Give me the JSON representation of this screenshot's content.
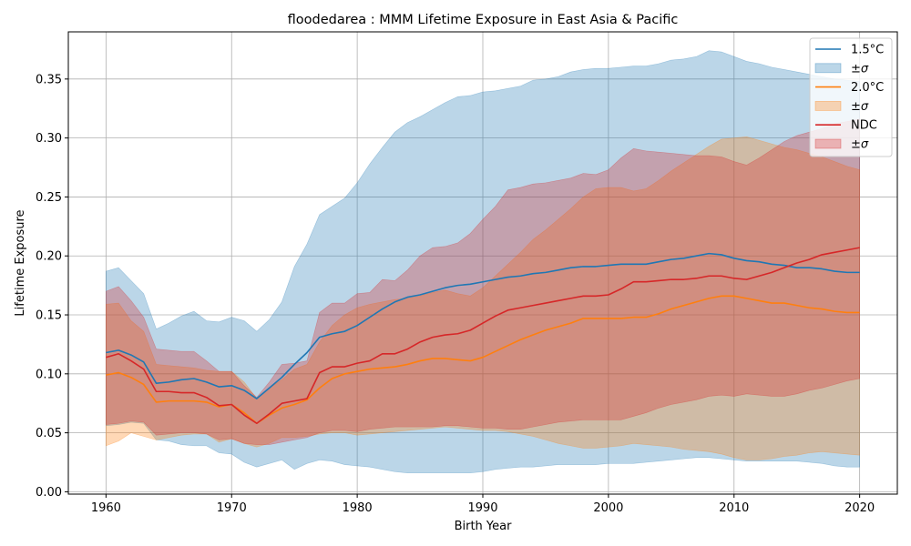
{
  "chart_data": {
    "type": "area",
    "title": "floodedarea : MMM Lifetime Exposure in East Asia & Pacific",
    "xlabel": "Birth Year",
    "ylabel": "Lifetime Exposure",
    "xlim": [
      1957,
      2023
    ],
    "ylim": [
      -0.002,
      0.39
    ],
    "x_ticks": [
      "1960",
      "1970",
      "1980",
      "1990",
      "2000",
      "2010",
      "2020"
    ],
    "y_ticks": [
      "0.00",
      "0.05",
      "0.10",
      "0.15",
      "0.20",
      "0.25",
      "0.30",
      "0.35"
    ],
    "grid": true,
    "legend_position": "top-right",
    "colors": {
      "1.5C": "#1f77b4",
      "2.0C": "#ff7f0e",
      "NDC": "#d62728",
      "band_1.5C": "#1f77b4",
      "band_2.0C": "#ff7f0e",
      "band_NDC": "#d62728"
    },
    "x": [
      1960,
      1961,
      1962,
      1963,
      1964,
      1965,
      1966,
      1967,
      1968,
      1969,
      1970,
      1971,
      1972,
      1973,
      1974,
      1975,
      1976,
      1977,
      1978,
      1979,
      1980,
      1981,
      1982,
      1983,
      1984,
      1985,
      1986,
      1987,
      1988,
      1989,
      1990,
      1991,
      1992,
      1993,
      1994,
      1995,
      1996,
      1997,
      1998,
      1999,
      2000,
      2001,
      2002,
      2003,
      2004,
      2005,
      2006,
      2007,
      2008,
      2009,
      2010,
      2011,
      2012,
      2013,
      2014,
      2015,
      2016,
      2017,
      2018,
      2019,
      2020
    ],
    "series": [
      {
        "name": "1.5°C",
        "band_label": "±σ",
        "values": [
          0.118,
          0.12,
          0.116,
          0.11,
          0.092,
          0.093,
          0.095,
          0.096,
          0.093,
          0.089,
          0.09,
          0.086,
          0.079,
          0.088,
          0.097,
          0.108,
          0.118,
          0.131,
          0.134,
          0.136,
          0.141,
          0.148,
          0.155,
          0.161,
          0.165,
          0.167,
          0.17,
          0.173,
          0.175,
          0.176,
          0.178,
          0.18,
          0.182,
          0.183,
          0.185,
          0.186,
          0.188,
          0.19,
          0.191,
          0.191,
          0.192,
          0.193,
          0.193,
          0.193,
          0.195,
          0.197,
          0.198,
          0.2,
          0.202,
          0.201,
          0.198,
          0.196,
          0.195,
          0.193,
          0.192,
          0.19,
          0.19,
          0.189,
          0.187,
          0.186,
          0.186
        ],
        "upper": [
          0.187,
          0.19,
          0.179,
          0.168,
          0.138,
          0.143,
          0.149,
          0.153,
          0.145,
          0.144,
          0.148,
          0.145,
          0.136,
          0.146,
          0.161,
          0.191,
          0.21,
          0.235,
          0.242,
          0.249,
          0.262,
          0.278,
          0.292,
          0.305,
          0.313,
          0.318,
          0.324,
          0.33,
          0.335,
          0.336,
          0.339,
          0.34,
          0.342,
          0.344,
          0.349,
          0.35,
          0.352,
          0.356,
          0.358,
          0.359,
          0.359,
          0.36,
          0.361,
          0.361,
          0.363,
          0.366,
          0.367,
          0.369,
          0.374,
          0.373,
          0.369,
          0.365,
          0.363,
          0.36,
          0.358,
          0.356,
          0.354,
          0.352,
          0.35,
          0.349,
          0.348
        ],
        "lower": [
          0.056,
          0.057,
          0.059,
          0.058,
          0.044,
          0.043,
          0.04,
          0.039,
          0.039,
          0.033,
          0.032,
          0.025,
          0.021,
          0.024,
          0.027,
          0.019,
          0.024,
          0.027,
          0.026,
          0.023,
          0.022,
          0.021,
          0.019,
          0.017,
          0.016,
          0.016,
          0.016,
          0.016,
          0.016,
          0.016,
          0.017,
          0.019,
          0.02,
          0.021,
          0.021,
          0.022,
          0.023,
          0.023,
          0.023,
          0.023,
          0.024,
          0.024,
          0.024,
          0.025,
          0.026,
          0.027,
          0.028,
          0.029,
          0.029,
          0.028,
          0.027,
          0.026,
          0.026,
          0.026,
          0.026,
          0.026,
          0.025,
          0.024,
          0.022,
          0.021,
          0.021
        ]
      },
      {
        "name": "2.0°C",
        "band_label": "±σ",
        "values": [
          0.099,
          0.101,
          0.097,
          0.091,
          0.076,
          0.077,
          0.077,
          0.077,
          0.076,
          0.072,
          0.074,
          0.067,
          0.058,
          0.065,
          0.071,
          0.074,
          0.078,
          0.088,
          0.096,
          0.1,
          0.102,
          0.104,
          0.105,
          0.106,
          0.108,
          0.111,
          0.113,
          0.113,
          0.112,
          0.111,
          0.114,
          0.119,
          0.124,
          0.129,
          0.133,
          0.137,
          0.14,
          0.143,
          0.147,
          0.147,
          0.147,
          0.147,
          0.148,
          0.148,
          0.151,
          0.155,
          0.158,
          0.161,
          0.164,
          0.166,
          0.166,
          0.164,
          0.162,
          0.16,
          0.16,
          0.158,
          0.156,
          0.155,
          0.153,
          0.152,
          0.152
        ],
        "upper": [
          0.159,
          0.16,
          0.145,
          0.136,
          0.108,
          0.107,
          0.106,
          0.105,
          0.103,
          0.102,
          0.102,
          0.093,
          0.079,
          0.088,
          0.095,
          0.104,
          0.108,
          0.127,
          0.141,
          0.15,
          0.156,
          0.159,
          0.161,
          0.163,
          0.164,
          0.166,
          0.169,
          0.171,
          0.168,
          0.166,
          0.173,
          0.183,
          0.193,
          0.203,
          0.214,
          0.222,
          0.231,
          0.24,
          0.25,
          0.257,
          0.258,
          0.258,
          0.255,
          0.257,
          0.264,
          0.272,
          0.279,
          0.286,
          0.293,
          0.299,
          0.3,
          0.301,
          0.298,
          0.295,
          0.292,
          0.29,
          0.287,
          0.284,
          0.28,
          0.276,
          0.273
        ],
        "lower": [
          0.039,
          0.043,
          0.05,
          0.047,
          0.044,
          0.046,
          0.048,
          0.049,
          0.049,
          0.042,
          0.045,
          0.041,
          0.038,
          0.041,
          0.046,
          0.046,
          0.047,
          0.049,
          0.05,
          0.05,
          0.048,
          0.049,
          0.05,
          0.051,
          0.052,
          0.053,
          0.054,
          0.055,
          0.054,
          0.053,
          0.052,
          0.052,
          0.051,
          0.049,
          0.047,
          0.044,
          0.041,
          0.039,
          0.037,
          0.037,
          0.038,
          0.039,
          0.041,
          0.04,
          0.039,
          0.038,
          0.036,
          0.035,
          0.034,
          0.032,
          0.029,
          0.027,
          0.027,
          0.028,
          0.03,
          0.031,
          0.033,
          0.034,
          0.033,
          0.032,
          0.031
        ]
      },
      {
        "name": "NDC",
        "band_label": "±σ",
        "values": [
          0.114,
          0.117,
          0.111,
          0.104,
          0.085,
          0.085,
          0.084,
          0.084,
          0.08,
          0.073,
          0.074,
          0.065,
          0.058,
          0.066,
          0.075,
          0.077,
          0.079,
          0.101,
          0.106,
          0.106,
          0.109,
          0.111,
          0.117,
          0.117,
          0.121,
          0.127,
          0.131,
          0.133,
          0.134,
          0.137,
          0.143,
          0.149,
          0.154,
          0.156,
          0.158,
          0.16,
          0.162,
          0.164,
          0.166,
          0.166,
          0.167,
          0.172,
          0.178,
          0.178,
          0.179,
          0.18,
          0.18,
          0.181,
          0.183,
          0.183,
          0.181,
          0.18,
          0.183,
          0.186,
          0.19,
          0.194,
          0.197,
          0.201,
          0.203,
          0.205,
          0.207
        ],
        "upper": [
          0.17,
          0.174,
          0.162,
          0.148,
          0.121,
          0.12,
          0.119,
          0.119,
          0.111,
          0.102,
          0.102,
          0.09,
          0.08,
          0.093,
          0.108,
          0.109,
          0.111,
          0.152,
          0.16,
          0.16,
          0.168,
          0.169,
          0.18,
          0.179,
          0.188,
          0.2,
          0.207,
          0.208,
          0.211,
          0.219,
          0.231,
          0.242,
          0.256,
          0.258,
          0.261,
          0.262,
          0.264,
          0.266,
          0.27,
          0.269,
          0.273,
          0.283,
          0.291,
          0.289,
          0.288,
          0.287,
          0.286,
          0.285,
          0.285,
          0.284,
          0.28,
          0.277,
          0.283,
          0.29,
          0.297,
          0.302,
          0.305,
          0.308,
          0.312,
          0.314,
          0.316
        ],
        "lower": [
          0.057,
          0.058,
          0.06,
          0.059,
          0.048,
          0.049,
          0.05,
          0.05,
          0.049,
          0.044,
          0.045,
          0.041,
          0.04,
          0.04,
          0.042,
          0.044,
          0.046,
          0.05,
          0.052,
          0.052,
          0.051,
          0.053,
          0.054,
          0.055,
          0.055,
          0.055,
          0.055,
          0.056,
          0.056,
          0.055,
          0.054,
          0.054,
          0.053,
          0.053,
          0.055,
          0.057,
          0.059,
          0.06,
          0.061,
          0.061,
          0.061,
          0.061,
          0.064,
          0.067,
          0.071,
          0.074,
          0.076,
          0.078,
          0.081,
          0.082,
          0.081,
          0.083,
          0.082,
          0.081,
          0.081,
          0.083,
          0.086,
          0.088,
          0.091,
          0.094,
          0.096
        ]
      }
    ]
  }
}
